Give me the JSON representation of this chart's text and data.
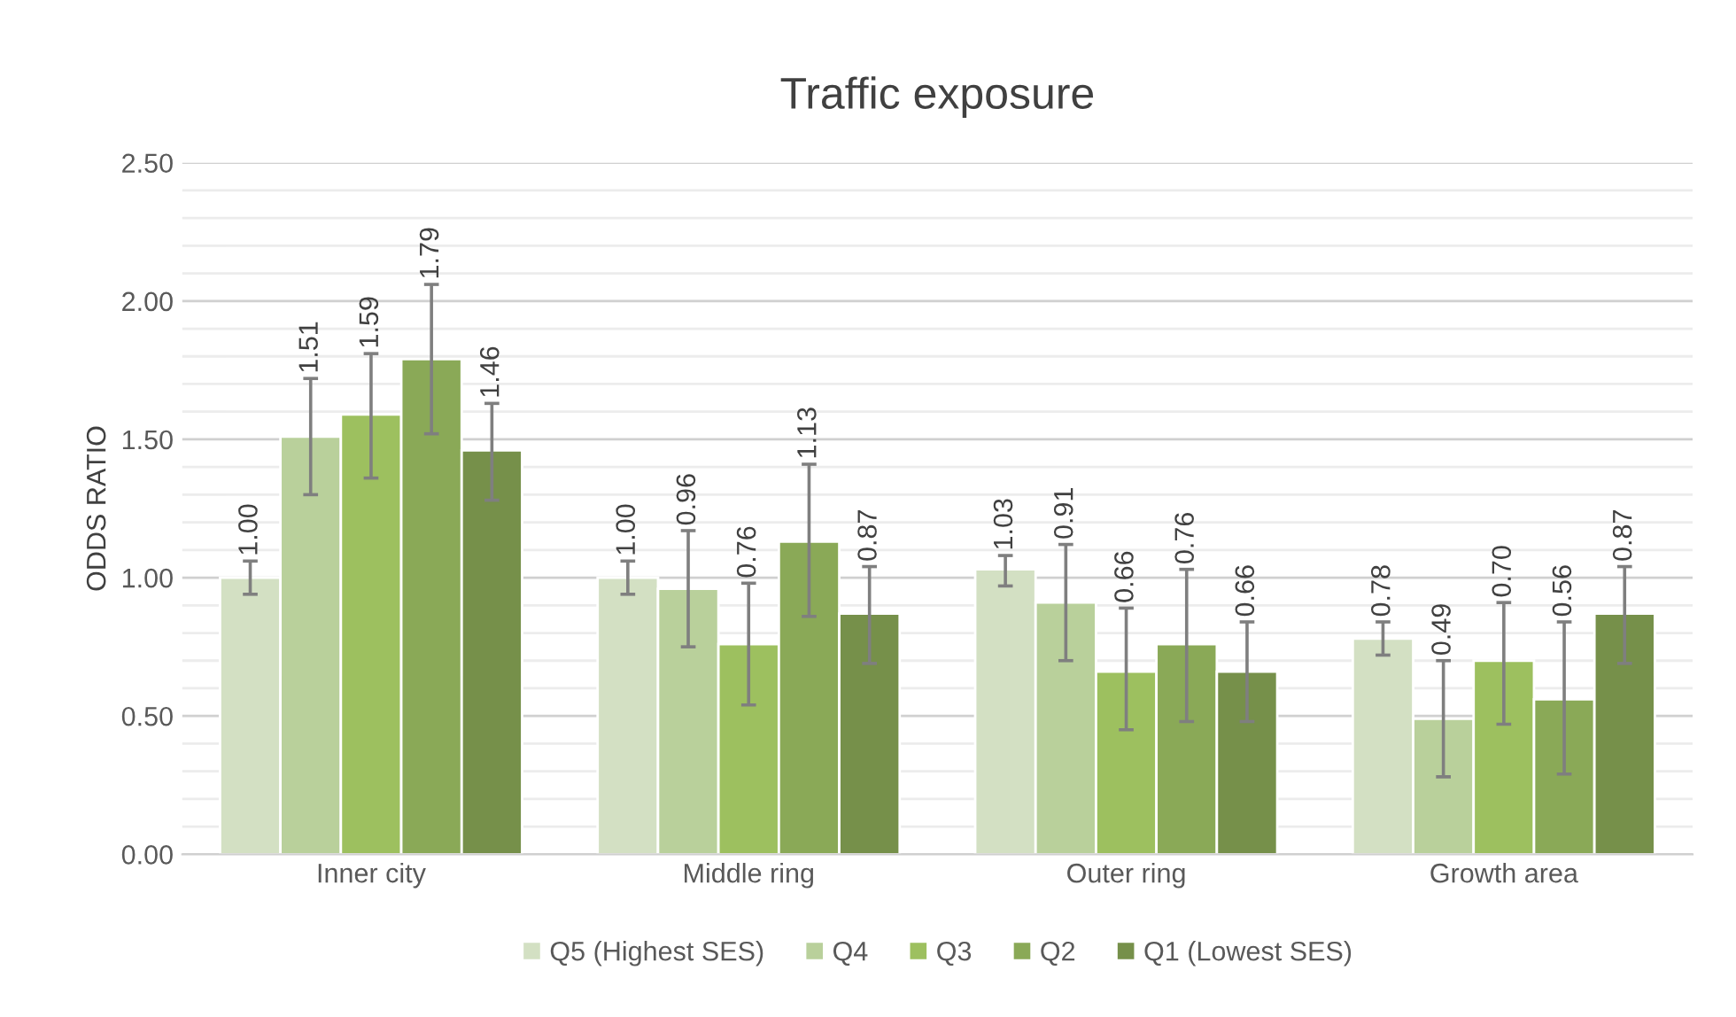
{
  "chart_data": {
    "type": "bar",
    "title": "Traffic exposure",
    "ylabel": "ODDS RATIO",
    "categories": [
      "Inner city",
      "Middle ring",
      "Outer ring",
      "Growth area"
    ],
    "series": [
      {
        "name": "Q5 (Highest SES)",
        "color": "#d3e0c3",
        "values": [
          1.0,
          1.0,
          1.03,
          0.78
        ],
        "value_labels": [
          "1.00",
          "1.00",
          "1.03",
          "0.78"
        ],
        "errors": [
          [
            0.94,
            1.06
          ],
          [
            0.94,
            1.06
          ],
          [
            0.97,
            1.08
          ],
          [
            0.72,
            0.84
          ]
        ]
      },
      {
        "name": "Q4",
        "color": "#b9d09b",
        "values": [
          1.51,
          0.96,
          0.91,
          0.49
        ],
        "value_labels": [
          "1.51",
          "0.96",
          "0.91",
          "0.49"
        ],
        "errors": [
          [
            1.3,
            1.72
          ],
          [
            0.75,
            1.17
          ],
          [
            0.7,
            1.12
          ],
          [
            0.28,
            0.7
          ]
        ]
      },
      {
        "name": "Q3",
        "color": "#9dc05f",
        "values": [
          1.59,
          0.76,
          0.66,
          0.7
        ],
        "value_labels": [
          "1.59",
          "0.76",
          "0.66",
          "0.70"
        ],
        "errors": [
          [
            1.36,
            1.81
          ],
          [
            0.54,
            0.98
          ],
          [
            0.45,
            0.89
          ],
          [
            0.47,
            0.91
          ]
        ]
      },
      {
        "name": "Q2",
        "color": "#8aa957",
        "values": [
          1.79,
          1.13,
          0.76,
          0.56
        ],
        "value_labels": [
          "1.79",
          "1.13",
          "0.76",
          "0.56"
        ],
        "errors": [
          [
            1.52,
            2.06
          ],
          [
            0.86,
            1.41
          ],
          [
            0.48,
            1.03
          ],
          [
            0.29,
            0.84
          ]
        ]
      },
      {
        "name": "Q1 (Lowest SES)",
        "color": "#76904a",
        "values": [
          1.46,
          0.87,
          0.66,
          0.87
        ],
        "value_labels": [
          "1.46",
          "0.87",
          "0.66",
          "0.87"
        ],
        "errors": [
          [
            1.28,
            1.63
          ],
          [
            0.69,
            1.04
          ],
          [
            0.48,
            0.84
          ],
          [
            0.69,
            1.04
          ]
        ]
      }
    ],
    "ylim": [
      0,
      2.5
    ],
    "yticks": [
      {
        "value": 0,
        "label": "0.00"
      },
      {
        "value": 0.1,
        "label": null
      },
      {
        "value": 0.2,
        "label": null
      },
      {
        "value": 0.3,
        "label": null
      },
      {
        "value": 0.4,
        "label": null
      },
      {
        "value": 0.5,
        "label": "0.50"
      },
      {
        "value": 0.6,
        "label": null
      },
      {
        "value": 0.7,
        "label": null
      },
      {
        "value": 0.8,
        "label": null
      },
      {
        "value": 0.9,
        "label": null
      },
      {
        "value": 1.0,
        "label": "1.00"
      },
      {
        "value": 1.1,
        "label": null
      },
      {
        "value": 1.2,
        "label": null
      },
      {
        "value": 1.3,
        "label": null
      },
      {
        "value": 1.4,
        "label": null
      },
      {
        "value": 1.5,
        "label": "1.50"
      },
      {
        "value": 1.6,
        "label": null
      },
      {
        "value": 1.7,
        "label": null
      },
      {
        "value": 1.8,
        "label": null
      },
      {
        "value": 1.9,
        "label": null
      },
      {
        "value": 2.0,
        "label": "2.00"
      },
      {
        "value": 2.1,
        "label": null
      },
      {
        "value": 2.2,
        "label": null
      },
      {
        "value": 2.3,
        "label": null
      },
      {
        "value": 2.4,
        "label": null
      },
      {
        "value": 2.5,
        "label": "2.50"
      }
    ],
    "grid": "y",
    "legend": "bottom"
  }
}
